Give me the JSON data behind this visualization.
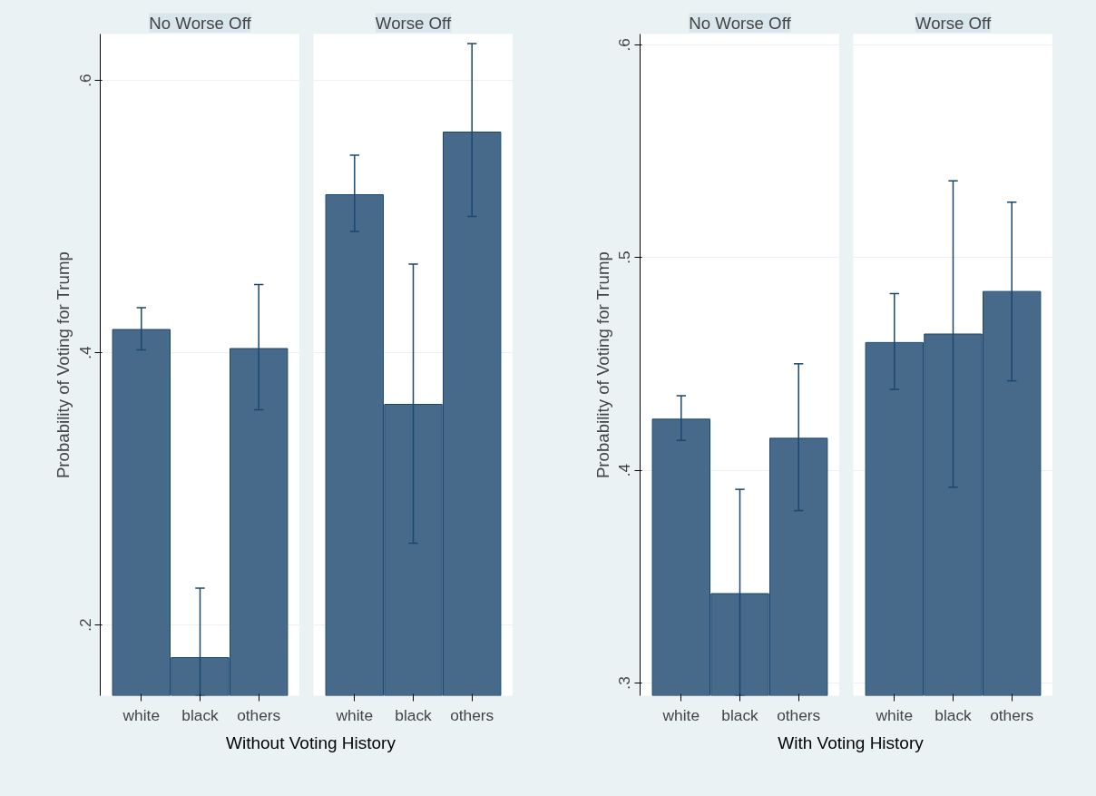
{
  "chart_data": [
    {
      "type": "bar",
      "title": "No Worse Off",
      "ylabel": "Probability of Voting for Trump",
      "xlabel": "Without Voting History",
      "categories": [
        "white",
        "black",
        "others"
      ],
      "values": [
        0.417,
        0.176,
        0.403
      ],
      "errors": [
        [
          0.402,
          0.433
        ],
        [
          0.148,
          0.227
        ],
        [
          0.358,
          0.45
        ]
      ],
      "color": "#476a8a",
      "ylim": [
        0.148,
        0.634
      ],
      "yticks": [
        {
          "value": 0.2,
          "label": ".2"
        },
        {
          "value": 0.4,
          "label": ".4"
        },
        {
          "value": 0.6,
          "label": ".6"
        }
      ],
      "grid": "y"
    },
    {
      "type": "bar",
      "title": "Worse Off",
      "categories": [
        "white",
        "black",
        "others"
      ],
      "values": [
        0.516,
        0.362,
        0.562
      ],
      "errors": [
        [
          0.489,
          0.545
        ],
        [
          0.26,
          0.465
        ],
        [
          0.5,
          0.627
        ]
      ],
      "color": "#476a8a",
      "ylim": [
        0.148,
        0.634
      ],
      "yticks": [
        {
          "value": 0.2,
          "label": null
        },
        {
          "value": 0.4,
          "label": null
        },
        {
          "value": 0.6,
          "label": null
        }
      ],
      "grid": "y",
      "tick_labels": "x"
    },
    {
      "type": "bar",
      "title": "No Worse Off",
      "ylabel": "Probability of Voting for Trump",
      "xlabel": "With Voting History",
      "categories": [
        "white",
        "black",
        "others"
      ],
      "values": [
        0.424,
        0.342,
        0.415
      ],
      "errors": [
        [
          0.414,
          0.435
        ],
        [
          0.294,
          0.391
        ],
        [
          0.381,
          0.45
        ]
      ],
      "color": "#476a8a",
      "ylim": [
        0.294,
        0.605
      ],
      "yticks": [
        {
          "value": 0.3,
          "label": ".3"
        },
        {
          "value": 0.4,
          "label": ".4"
        },
        {
          "value": 0.5,
          "label": ".5"
        },
        {
          "value": 0.6,
          "label": ".6"
        }
      ],
      "grid": "y"
    },
    {
      "type": "bar",
      "title": "Worse Off",
      "categories": [
        "white",
        "black",
        "others"
      ],
      "values": [
        0.46,
        0.464,
        0.484
      ],
      "errors": [
        [
          0.438,
          0.483
        ],
        [
          0.392,
          0.536
        ],
        [
          0.442,
          0.526
        ]
      ],
      "color": "#476a8a",
      "ylim": [
        0.294,
        0.605
      ],
      "yticks": [
        {
          "value": 0.3,
          "label": null
        },
        {
          "value": 0.4,
          "label": null
        },
        {
          "value": 0.5,
          "label": null
        },
        {
          "value": 0.6,
          "label": null
        }
      ],
      "grid": "y",
      "tick_labels": "x"
    }
  ]
}
